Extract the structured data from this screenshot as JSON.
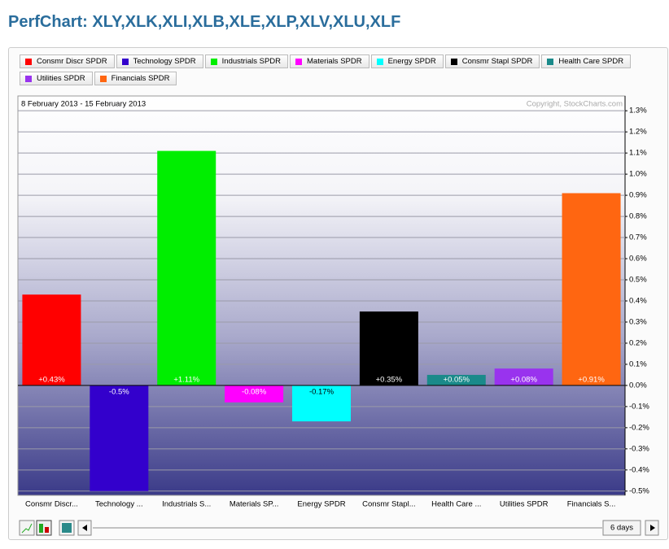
{
  "chart_data": {
    "type": "bar",
    "title": "PerfChart: XLY,XLK,XLI,XLB,XLE,XLP,XLV,XLU,XLF",
    "subtitle": "8 February 2013 - 15 February 2013",
    "copyright": "Copyright, StockCharts.com",
    "period": "6 days",
    "legend_labels": [
      "Consmr Discr SPDR",
      "Technology SPDR",
      "Industrials SPDR",
      "Materials SPDR",
      "Energy SPDR",
      "Consmr Stapl SPDR",
      "Health Care SPDR",
      "Utilities SPDR",
      "Financials SPDR"
    ],
    "categories": [
      "Consmr Discr...",
      "Technology ...",
      "Industrials S...",
      "Materials SP...",
      "Energy SPDR",
      "Consmr Stapl...",
      "Health Care ...",
      "Utilities SPDR",
      "Financials S..."
    ],
    "values": [
      0.43,
      -0.5,
      1.11,
      -0.08,
      -0.17,
      0.35,
      0.05,
      0.08,
      0.91
    ],
    "value_labels": [
      "+0.43%",
      "-0.5%",
      "+1.11%",
      "-0.08%",
      "-0.17%",
      "+0.35%",
      "+0.05%",
      "+0.08%",
      "+0.91%"
    ],
    "colors": [
      "#ff0000",
      "#3300cc",
      "#00ee00",
      "#ff00ff",
      "#00ffff",
      "#000000",
      "#1a8a8a",
      "#9933ee",
      "#ff6611"
    ],
    "ylim": [
      -0.52,
      1.37
    ],
    "yticks": [
      {
        "value": 1.3,
        "label": "1.3%"
      },
      {
        "value": 1.2,
        "label": "1.2%"
      },
      {
        "value": 1.1,
        "label": "1.1%"
      },
      {
        "value": 1.0,
        "label": "1.0%"
      },
      {
        "value": 0.9,
        "label": "0.9%"
      },
      {
        "value": 0.8,
        "label": "0.8%"
      },
      {
        "value": 0.7,
        "label": "0.7%"
      },
      {
        "value": 0.6,
        "label": "0.6%"
      },
      {
        "value": 0.5,
        "label": "0.5%"
      },
      {
        "value": 0.4,
        "label": "0.4%"
      },
      {
        "value": 0.3,
        "label": "0.3%"
      },
      {
        "value": 0.2,
        "label": "0.2%"
      },
      {
        "value": 0.1,
        "label": "0.1%"
      },
      {
        "value": 0.0,
        "label": "0.0%"
      },
      {
        "value": -0.1,
        "label": "-0.1%"
      },
      {
        "value": -0.2,
        "label": "-0.2%"
      },
      {
        "value": -0.3,
        "label": "-0.3%"
      },
      {
        "value": -0.4,
        "label": "-0.4%"
      },
      {
        "value": -0.5,
        "label": "-0.5%"
      }
    ],
    "grid": true
  }
}
